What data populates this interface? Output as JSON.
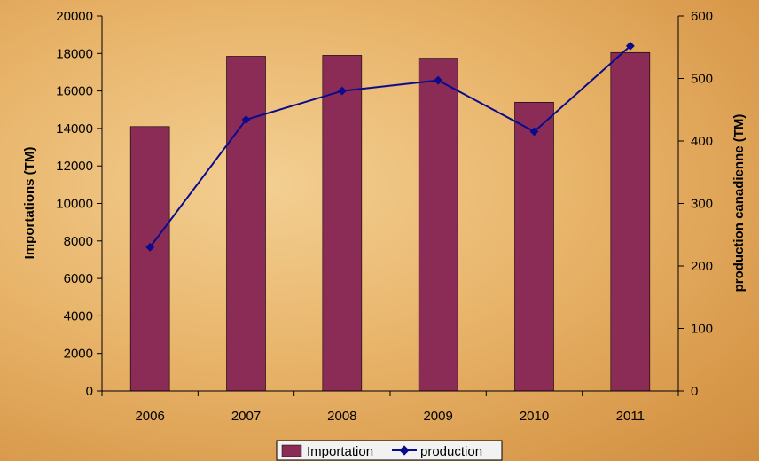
{
  "chart_data": {
    "type": "bar",
    "categories": [
      "2006",
      "2007",
      "2008",
      "2009",
      "2010",
      "2011"
    ],
    "series": [
      {
        "name": "Importation",
        "type": "bar",
        "axis": "left",
        "color": "#8b2c57",
        "values": [
          14100,
          17850,
          17900,
          17750,
          15400,
          18050
        ]
      },
      {
        "name": "production",
        "type": "line",
        "axis": "right",
        "color": "#0a0a8c",
        "values": [
          230,
          434,
          480,
          497,
          415,
          552
        ]
      }
    ],
    "ylabel": "Importations (TM)",
    "y2label": "production canadienne (TM)",
    "ylim": [
      0,
      20000
    ],
    "y2lim": [
      0,
      600
    ],
    "yticks": [
      "0",
      "2000",
      "4000",
      "6000",
      "8000",
      "10000",
      "12000",
      "14000",
      "16000",
      "18000",
      "20000"
    ],
    "y2ticks": [
      "0",
      "100",
      "200",
      "300",
      "400",
      "500",
      "600"
    ],
    "legend": "bottom",
    "grid": false
  }
}
